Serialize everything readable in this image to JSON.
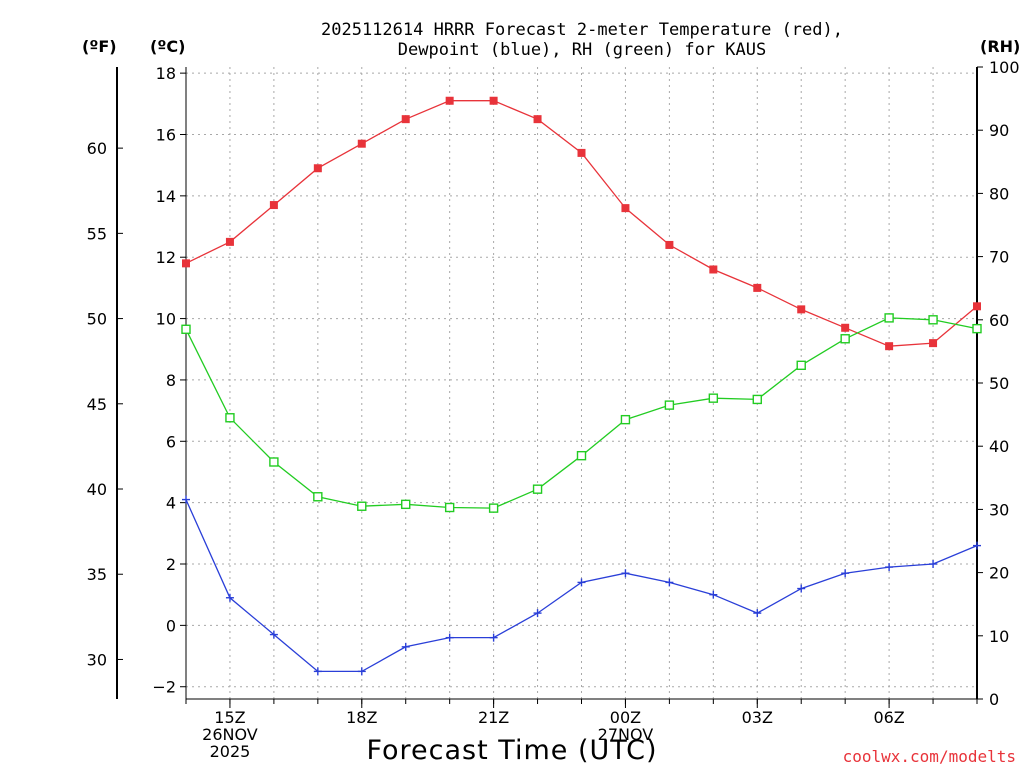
{
  "chart_data": {
    "type": "line",
    "title_line1": "2025112614 HRRR Forecast 2-meter Temperature (red),",
    "title_line2": "Dewpoint (blue), RH (green) for KAUS",
    "xlabel": "Forecast Time (UTC)",
    "credit": "coolwx.com/modelts",
    "left_unit_f": "(ºF)",
    "left_unit_c": "(ºC)",
    "right_unit": "(RH)",
    "x_hours": [
      14,
      15,
      16,
      17,
      18,
      19,
      20,
      21,
      22,
      23,
      24,
      25,
      26,
      27,
      28,
      29,
      30,
      31,
      32
    ],
    "x_ticks": [
      {
        "hour": 15,
        "lines": [
          "15Z",
          "26NOV",
          "2025"
        ]
      },
      {
        "hour": 18,
        "lines": [
          "18Z"
        ]
      },
      {
        "hour": 21,
        "lines": [
          "21Z"
        ]
      },
      {
        "hour": 24,
        "lines": [
          "00Z",
          "27NOV"
        ]
      },
      {
        "hour": 27,
        "lines": [
          "03Z"
        ]
      },
      {
        "hour": 30,
        "lines": [
          "06Z"
        ]
      }
    ],
    "celsius_ticks": [
      -2,
      0,
      2,
      4,
      6,
      8,
      10,
      12,
      14,
      16,
      18
    ],
    "fahrenheit_ticks": [
      30,
      35,
      40,
      45,
      50,
      55,
      60
    ],
    "rh_ticks": [
      0,
      10,
      20,
      30,
      40,
      50,
      60,
      70,
      80,
      90,
      100
    ],
    "c_range": [
      -2.4,
      18.2
    ],
    "rh_range": [
      0,
      100
    ],
    "series": [
      {
        "name": "Temperature",
        "unit": "C",
        "color": "#e8333a",
        "marker": "filled-square",
        "values": [
          11.8,
          12.5,
          13.7,
          14.9,
          15.7,
          16.5,
          17.1,
          17.1,
          16.5,
          15.4,
          13.6,
          12.4,
          11.6,
          11.0,
          10.3,
          9.7,
          9.1,
          9.2,
          10.4
        ]
      },
      {
        "name": "Dewpoint",
        "unit": "C",
        "color": "#2a3fd8",
        "marker": "plus",
        "values": [
          4.1,
          0.9,
          -0.3,
          -1.5,
          -1.5,
          -0.7,
          -0.4,
          -0.4,
          0.4,
          1.4,
          1.7,
          1.4,
          1.0,
          0.4,
          1.2,
          1.7,
          1.9,
          2.0,
          2.6
        ]
      },
      {
        "name": "RH",
        "unit": "%",
        "color": "#22cc22",
        "marker": "open-square",
        "values": [
          58.5,
          44.5,
          37.5,
          32.0,
          30.5,
          30.8,
          30.3,
          30.2,
          33.2,
          38.5,
          44.2,
          46.5,
          47.6,
          47.4,
          52.8,
          57.0,
          60.3,
          60.0,
          58.6
        ]
      }
    ]
  }
}
